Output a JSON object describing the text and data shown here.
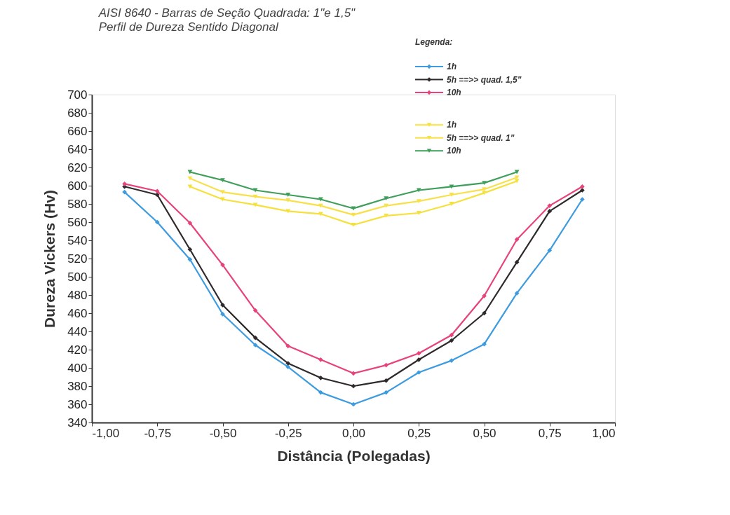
{
  "chart_data": {
    "type": "line",
    "title": "AISI 8640 - Barras de Seção Quadrada: 1\"e 1,5\"",
    "subtitle": "Perfil de Dureza Sentido Diagonal",
    "xlabel": "Distância (Polegadas)",
    "ylabel": "Dureza Vickers (Hv)",
    "legend_title": "Legenda:",
    "legend": "top right",
    "grid": false,
    "line_style": "solid",
    "xlim": [
      -1,
      1
    ],
    "xticks": [
      {
        "value": -1,
        "label": "-1,00"
      },
      {
        "value": -0.75,
        "label": "-0,75"
      },
      {
        "value": -0.5,
        "label": "-0,50"
      },
      {
        "value": -0.25,
        "label": "-0,25"
      },
      {
        "value": 0,
        "label": "0,00"
      },
      {
        "value": 0.25,
        "label": "0,25"
      },
      {
        "value": 0.5,
        "label": "0,50"
      },
      {
        "value": 0.75,
        "label": "0,75"
      },
      {
        "value": 1,
        "label": "1,00"
      }
    ],
    "ylim": [
      340,
      700
    ],
    "yticks": [
      340,
      360,
      380,
      400,
      420,
      440,
      460,
      480,
      500,
      520,
      540,
      560,
      580,
      600,
      620,
      640,
      660,
      680,
      700
    ],
    "series": [
      {
        "name": "1h",
        "color": "#3d9be0",
        "marker": "diamond",
        "x": [
          -0.875,
          -0.75,
          -0.625,
          -0.5,
          -0.375,
          -0.25,
          -0.125,
          0,
          0.125,
          0.25,
          0.375,
          0.5,
          0.625,
          0.75,
          0.875
        ],
        "values": [
          593,
          560,
          519,
          459,
          425,
          401,
          373,
          360,
          373,
          395,
          408,
          426,
          482,
          529,
          585
        ]
      },
      {
        "name": "5h ==>> quad. 1,5\"",
        "color": "#2e2a2b",
        "marker": "diamond",
        "x": [
          -0.875,
          -0.75,
          -0.625,
          -0.5,
          -0.375,
          -0.25,
          -0.125,
          0,
          0.125,
          0.25,
          0.375,
          0.5,
          0.625,
          0.75,
          0.875
        ],
        "values": [
          599,
          590,
          530,
          469,
          433,
          405,
          389,
          380,
          386,
          409,
          430,
          460,
          516,
          572,
          595
        ]
      },
      {
        "name": "10h",
        "color": "#e8427c",
        "marker": "diamond",
        "x": [
          -0.875,
          -0.75,
          -0.625,
          -0.5,
          -0.375,
          -0.25,
          -0.125,
          0,
          0.125,
          0.25,
          0.375,
          0.5,
          0.625,
          0.75,
          0.875
        ],
        "values": [
          602,
          594,
          559,
          513,
          463,
          424,
          409,
          394,
          403,
          416,
          436,
          479,
          541,
          578,
          599
        ]
      },
      {
        "name": "1h",
        "color": "#f5e03c",
        "marker": "triangle",
        "x": [
          -0.625,
          -0.5,
          -0.375,
          -0.25,
          -0.125,
          0,
          0.125,
          0.25,
          0.375,
          0.5,
          0.625
        ],
        "values": [
          599,
          585,
          579,
          572,
          569,
          557,
          567,
          570,
          580,
          592,
          605
        ]
      },
      {
        "name": "5h ==>> quad. 1\"",
        "color": "#f8e04a",
        "marker": "triangle",
        "x": [
          -0.625,
          -0.5,
          -0.375,
          -0.25,
          -0.125,
          0,
          0.125,
          0.25,
          0.375,
          0.5,
          0.625
        ],
        "values": [
          608,
          593,
          588,
          584,
          578,
          568,
          578,
          583,
          590,
          596,
          609
        ]
      },
      {
        "name": "10h",
        "color": "#3e9e5a",
        "marker": "triangle",
        "x": [
          -0.625,
          -0.5,
          -0.375,
          -0.25,
          -0.125,
          0,
          0.125,
          0.25,
          0.375,
          0.5,
          0.625
        ],
        "values": [
          615,
          606,
          595,
          590,
          585,
          575,
          586,
          595,
          599,
          603,
          615
        ]
      }
    ]
  }
}
